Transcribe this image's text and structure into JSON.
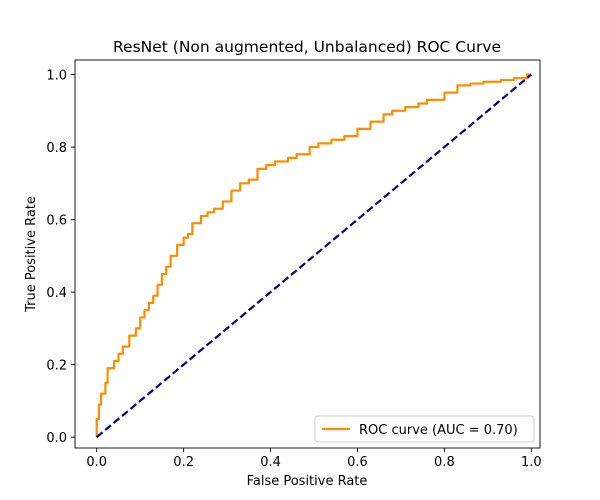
{
  "chart_data": {
    "type": "line",
    "title": "ResNet (Non augmented, Unbalanced) ROC Curve",
    "xlabel": "False Positive Rate",
    "ylabel": "True Positive Rate",
    "xlim": [
      -0.05,
      1.02
    ],
    "ylim": [
      -0.03,
      1.04
    ],
    "x_ticks": [
      0.0,
      0.2,
      0.4,
      0.6,
      0.8,
      1.0
    ],
    "y_ticks": [
      0.0,
      0.2,
      0.4,
      0.6,
      0.8,
      1.0
    ],
    "x_tick_labels": [
      "0.0",
      "0.2",
      "0.4",
      "0.6",
      "0.8",
      "1.0"
    ],
    "y_tick_labels": [
      "0.0",
      "0.2",
      "0.4",
      "0.6",
      "0.8",
      "1.0"
    ],
    "grid": false,
    "legend_position": "lower-right",
    "series": [
      {
        "name": "ROC curve (AUC = 0.70)",
        "color": "#ff8c00",
        "style": "solid",
        "x": [
          0.0,
          0.0,
          0.005,
          0.005,
          0.01,
          0.01,
          0.02,
          0.02,
          0.025,
          0.025,
          0.04,
          0.04,
          0.05,
          0.05,
          0.06,
          0.06,
          0.075,
          0.075,
          0.09,
          0.09,
          0.1,
          0.1,
          0.11,
          0.11,
          0.12,
          0.12,
          0.13,
          0.13,
          0.14,
          0.14,
          0.15,
          0.15,
          0.16,
          0.16,
          0.17,
          0.17,
          0.185,
          0.185,
          0.2,
          0.2,
          0.21,
          0.21,
          0.22,
          0.22,
          0.24,
          0.24,
          0.255,
          0.255,
          0.27,
          0.27,
          0.29,
          0.29,
          0.31,
          0.31,
          0.33,
          0.33,
          0.35,
          0.35,
          0.37,
          0.37,
          0.39,
          0.39,
          0.41,
          0.41,
          0.44,
          0.44,
          0.46,
          0.46,
          0.49,
          0.49,
          0.51,
          0.51,
          0.54,
          0.54,
          0.57,
          0.57,
          0.6,
          0.6,
          0.63,
          0.63,
          0.66,
          0.66,
          0.68,
          0.68,
          0.71,
          0.71,
          0.74,
          0.74,
          0.76,
          0.76,
          0.8,
          0.8,
          0.83,
          0.83,
          0.86,
          0.86,
          0.89,
          0.89,
          0.93,
          0.93,
          0.96,
          0.96,
          0.99,
          0.99,
          1.0
        ],
        "y": [
          0.0,
          0.05,
          0.05,
          0.09,
          0.09,
          0.12,
          0.12,
          0.15,
          0.15,
          0.19,
          0.19,
          0.21,
          0.21,
          0.23,
          0.23,
          0.25,
          0.25,
          0.28,
          0.28,
          0.3,
          0.3,
          0.33,
          0.33,
          0.35,
          0.35,
          0.37,
          0.37,
          0.39,
          0.39,
          0.42,
          0.42,
          0.45,
          0.45,
          0.47,
          0.47,
          0.5,
          0.5,
          0.53,
          0.53,
          0.55,
          0.55,
          0.56,
          0.56,
          0.59,
          0.59,
          0.61,
          0.61,
          0.62,
          0.62,
          0.63,
          0.63,
          0.65,
          0.65,
          0.68,
          0.68,
          0.7,
          0.7,
          0.71,
          0.71,
          0.74,
          0.74,
          0.75,
          0.75,
          0.76,
          0.76,
          0.77,
          0.77,
          0.78,
          0.78,
          0.8,
          0.8,
          0.81,
          0.81,
          0.82,
          0.82,
          0.83,
          0.83,
          0.85,
          0.85,
          0.87,
          0.87,
          0.89,
          0.89,
          0.9,
          0.9,
          0.91,
          0.91,
          0.92,
          0.92,
          0.93,
          0.93,
          0.95,
          0.95,
          0.97,
          0.97,
          0.975,
          0.975,
          0.98,
          0.98,
          0.985,
          0.985,
          0.99,
          0.99,
          1.0,
          1.0
        ]
      },
      {
        "color": "#000080",
        "style": "dashed",
        "x": [
          0.0,
          1.0
        ],
        "y": [
          0.0,
          1.0
        ]
      }
    ],
    "legend": [
      {
        "label": "ROC curve (AUC = 0.70)",
        "color": "#ff8c00"
      }
    ]
  }
}
